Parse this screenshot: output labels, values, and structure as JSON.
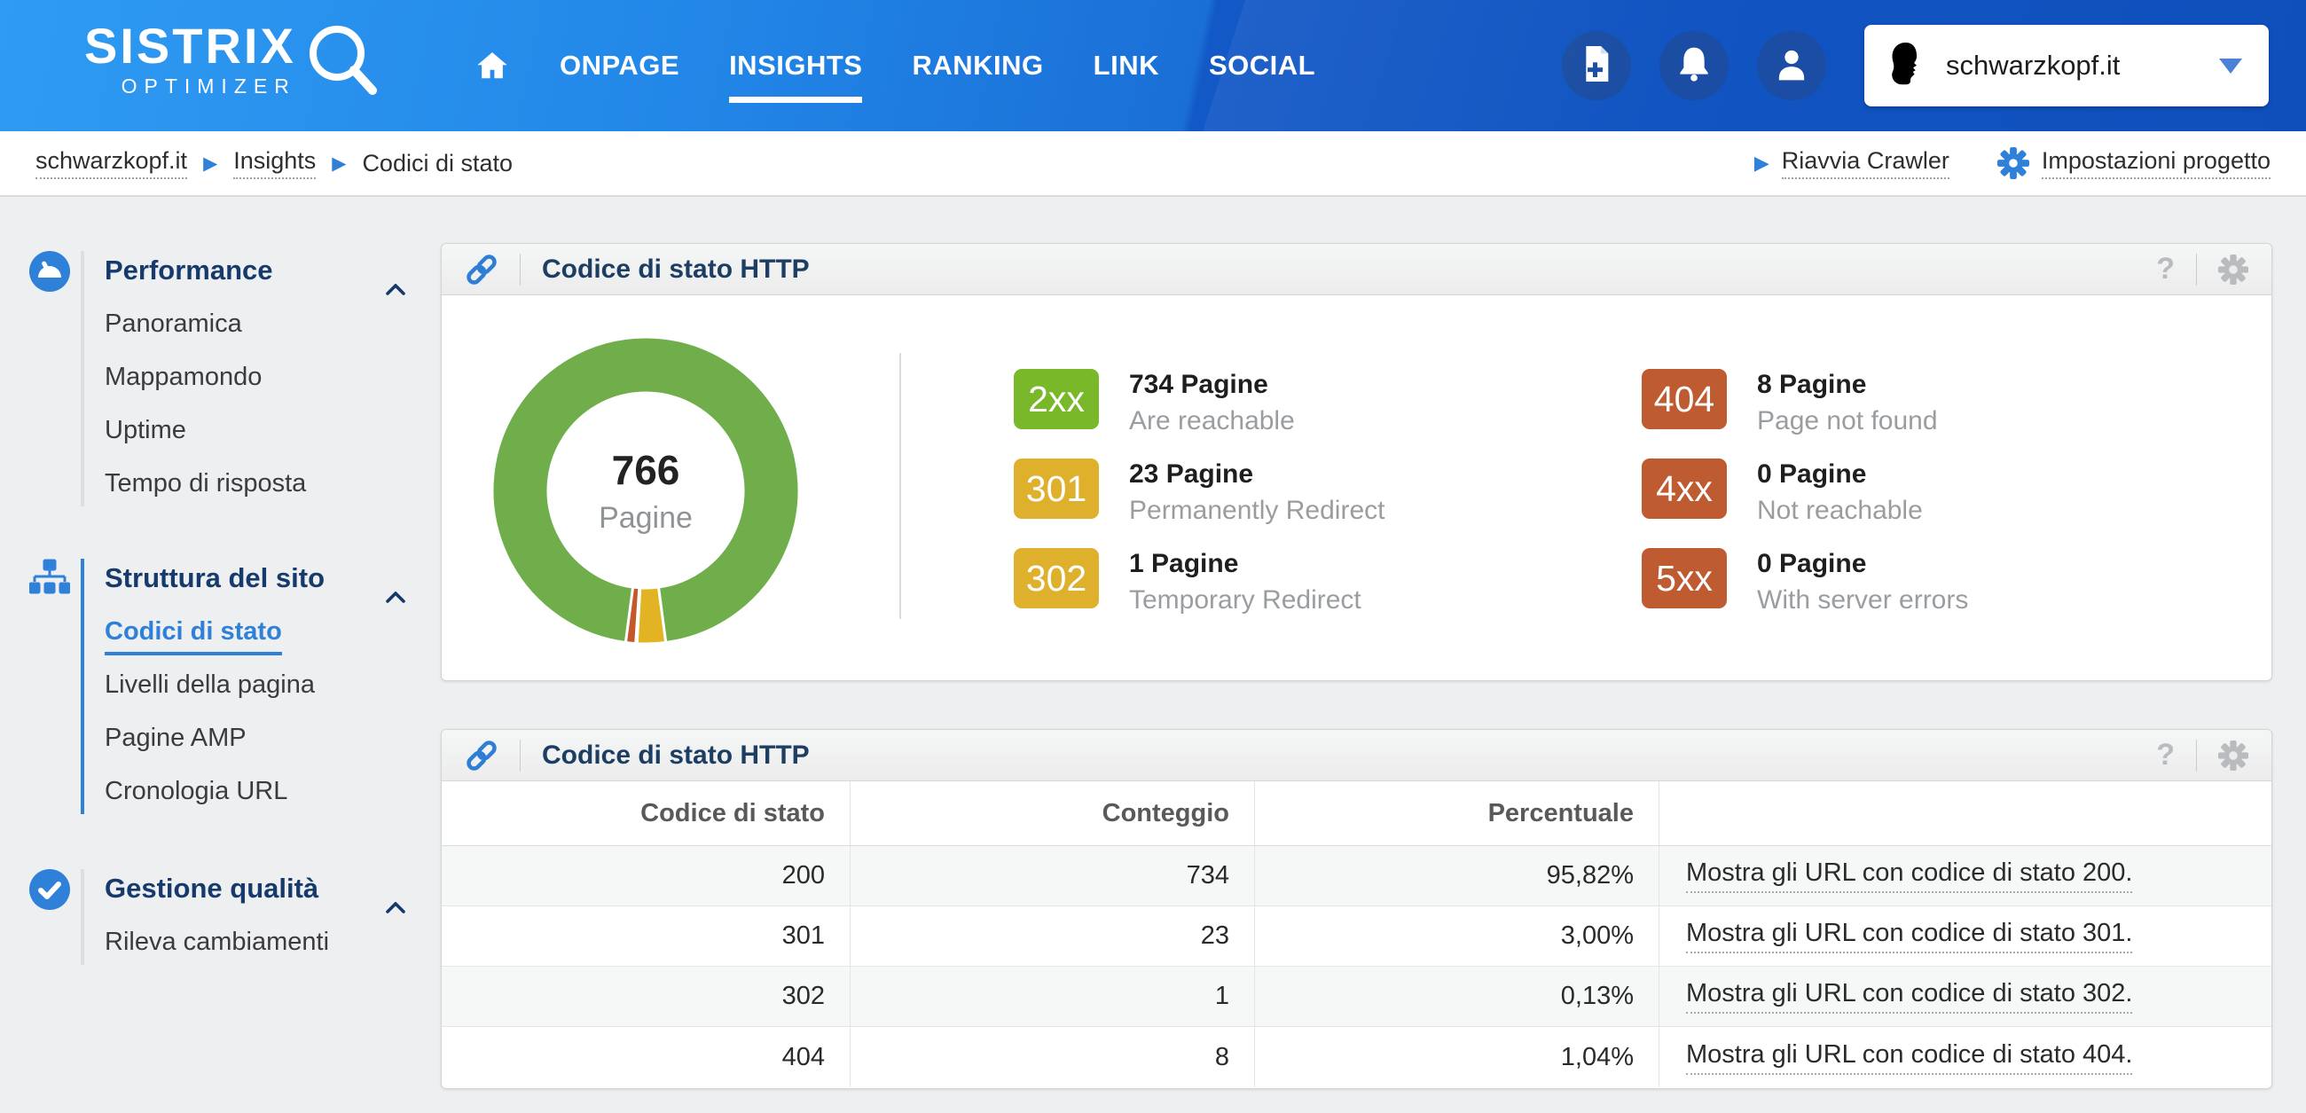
{
  "colors": {
    "accent_blue": "#2f80d8",
    "navy_title": "#1d3e63",
    "badge_green": "#79b829",
    "badge_yellow": "#dfb02c",
    "badge_orange": "#bf5b30",
    "header_blue_left": "#2f9bf2",
    "header_blue_right": "#0f4fbc"
  },
  "header": {
    "logo": {
      "title": "SISTRIX",
      "subtitle": "OPTIMIZER"
    },
    "nav": {
      "items": [
        {
          "label": "ONPAGE",
          "active": false
        },
        {
          "label": "INSIGHTS",
          "active": true
        },
        {
          "label": "RANKING",
          "active": false
        },
        {
          "label": "LINK",
          "active": false
        },
        {
          "label": "SOCIAL",
          "active": false
        }
      ]
    },
    "project_selector": {
      "value": "schwarzkopf.it"
    }
  },
  "breadcrumb": {
    "items": [
      {
        "label": "schwarzkopf.it"
      },
      {
        "label": "Insights"
      },
      {
        "label": "Codici di stato"
      }
    ],
    "actions": [
      {
        "label": "Riavvia Crawler"
      },
      {
        "label": "Impostazioni progetto"
      }
    ]
  },
  "sidebar": {
    "sections": [
      {
        "title": "Performance",
        "icon": "gauge-icon",
        "items": [
          {
            "label": "Panoramica"
          },
          {
            "label": "Mappamondo"
          },
          {
            "label": "Uptime"
          },
          {
            "label": "Tempo di risposta"
          }
        ]
      },
      {
        "title": "Struttura del sito",
        "icon": "sitemap-icon",
        "items": [
          {
            "label": "Codici di stato",
            "active": true
          },
          {
            "label": "Livelli della pagina"
          },
          {
            "label": "Pagine AMP"
          },
          {
            "label": "Cronologia URL"
          }
        ]
      },
      {
        "title": "Gestione qualità",
        "icon": "check-icon",
        "items": [
          {
            "label": "Rileva cambiamenti"
          }
        ]
      }
    ]
  },
  "panel_chart": {
    "title": "Codice di stato HTTP",
    "help": "?"
  },
  "chart_data": {
    "type": "pie",
    "variant": "donut",
    "title": "Codice di stato HTTP",
    "center": {
      "value": "766",
      "label": "Pagine"
    },
    "total_pages": 766,
    "start_angle_deg": 187.5,
    "legend_position": "right",
    "slices": [
      {
        "label": "200",
        "value": 734,
        "percent": "95,82%",
        "color": "#6fae4b"
      },
      {
        "label": "301",
        "value": 23,
        "percent": "3,00%",
        "color": "#e2b322"
      },
      {
        "label": "302",
        "value": 1,
        "percent": "0,13%",
        "color": "#cf9c1d"
      },
      {
        "label": "404",
        "value": 8,
        "percent": "1,04%",
        "color": "#c2582c"
      }
    ]
  },
  "legend": {
    "entries": [
      {
        "badge": "2xx",
        "color": "#79b829",
        "title": "734 Pagine",
        "subtitle": "Are reachable"
      },
      {
        "badge": "301",
        "color": "#dfb02c",
        "title": "23 Pagine",
        "subtitle": "Permanently Redirect"
      },
      {
        "badge": "302",
        "color": "#dfb02c",
        "title": "1 Pagine",
        "subtitle": "Temporary Redirect"
      },
      {
        "badge": "404",
        "color": "#bf5b30",
        "title": "8 Pagine",
        "subtitle": "Page not found"
      },
      {
        "badge": "4xx",
        "color": "#bf5b30",
        "title": "0 Pagine",
        "subtitle": "Not reachable"
      },
      {
        "badge": "5xx",
        "color": "#bf5b30",
        "title": "0 Pagine",
        "subtitle": "With server errors"
      }
    ]
  },
  "panel_table": {
    "title": "Codice di stato HTTP",
    "help": "?",
    "headers": [
      "Codice di stato",
      "Conteggio",
      "Percentuale"
    ],
    "rows": [
      {
        "code": "200",
        "count": "734",
        "percent": "95,82%",
        "link": "Mostra gli URL con codice di stato 200."
      },
      {
        "code": "301",
        "count": "23",
        "percent": "3,00%",
        "link": "Mostra gli URL con codice di stato 301."
      },
      {
        "code": "302",
        "count": "1",
        "percent": "0,13%",
        "link": "Mostra gli URL con codice di stato 302."
      },
      {
        "code": "404",
        "count": "8",
        "percent": "1,04%",
        "link": "Mostra gli URL con codice di stato 404."
      }
    ]
  }
}
